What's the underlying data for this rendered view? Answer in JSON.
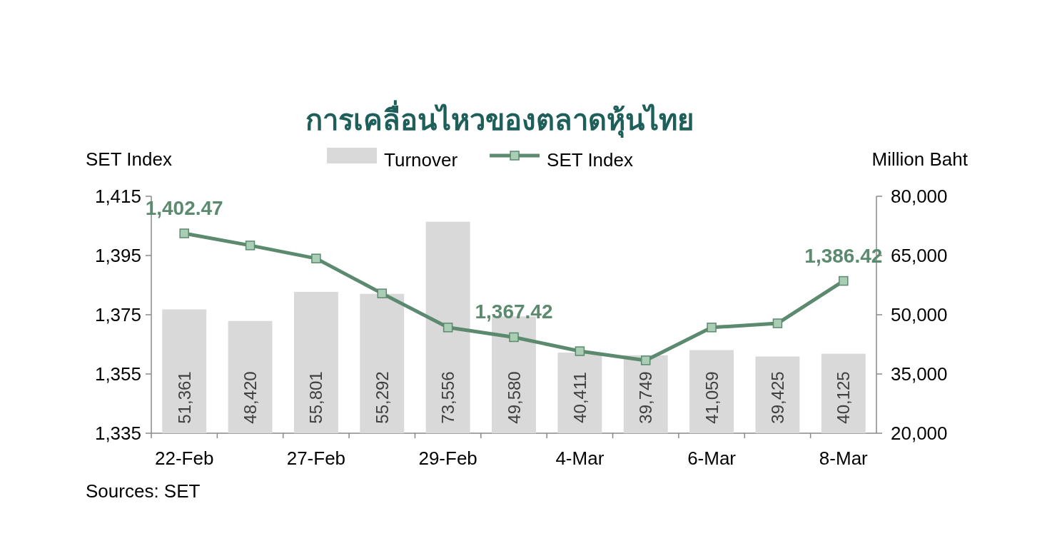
{
  "chart_data": {
    "type": "bar",
    "title": "การเคลื่อนไหวของตลาดหุ้นไทย",
    "ylabel": "SET Index",
    "y2label": "Million Baht",
    "annotations": [
      "Sources: SET"
    ],
    "categories": [
      "22-Feb",
      null,
      "27-Feb",
      null,
      "29-Feb",
      null,
      "4-Mar",
      null,
      "6-Mar",
      null,
      "8-Mar"
    ],
    "series": [
      {
        "name": "Turnover",
        "axis": "y2",
        "color": "#d9d9d9",
        "values": [
          51361,
          48420,
          55801,
          55292,
          73556,
          49580,
          40411,
          39749,
          41059,
          39425,
          40125
        ],
        "value_labels": [
          "51,361",
          "48,420",
          "55,801",
          "55,292",
          "73,556",
          "49,580",
          "40,411",
          "39,749",
          "41,059",
          "39,425",
          "40,125"
        ]
      },
      {
        "name": "SET Index",
        "type": "line",
        "color": "#5b8a6e",
        "marker": "square",
        "values": [
          1402.47,
          1398.4,
          1394.0,
          1382.2,
          1370.7,
          1367.42,
          1362.7,
          1359.6,
          1370.7,
          1372.1,
          1386.42
        ],
        "value_labels": [
          "1,402.47",
          null,
          null,
          null,
          null,
          "1,367.42",
          null,
          null,
          null,
          null,
          "1,386.42"
        ]
      }
    ],
    "ylim": [
      1335,
      1415
    ],
    "yticks": [
      {
        "value": 1335,
        "label": "1,335"
      },
      {
        "value": 1355,
        "label": "1,355"
      },
      {
        "value": 1375,
        "label": "1,375"
      },
      {
        "value": 1395,
        "label": "1,395"
      },
      {
        "value": 1415,
        "label": "1,415"
      }
    ],
    "y2lim": [
      20000,
      80000
    ],
    "y2ticks": [
      {
        "value": 20000,
        "label": "20,000"
      },
      {
        "value": 35000,
        "label": "35,000"
      },
      {
        "value": 50000,
        "label": "50,000"
      },
      {
        "value": 65000,
        "label": "65,000"
      },
      {
        "value": 80000,
        "label": "80,000"
      }
    ],
    "legend": "top"
  }
}
